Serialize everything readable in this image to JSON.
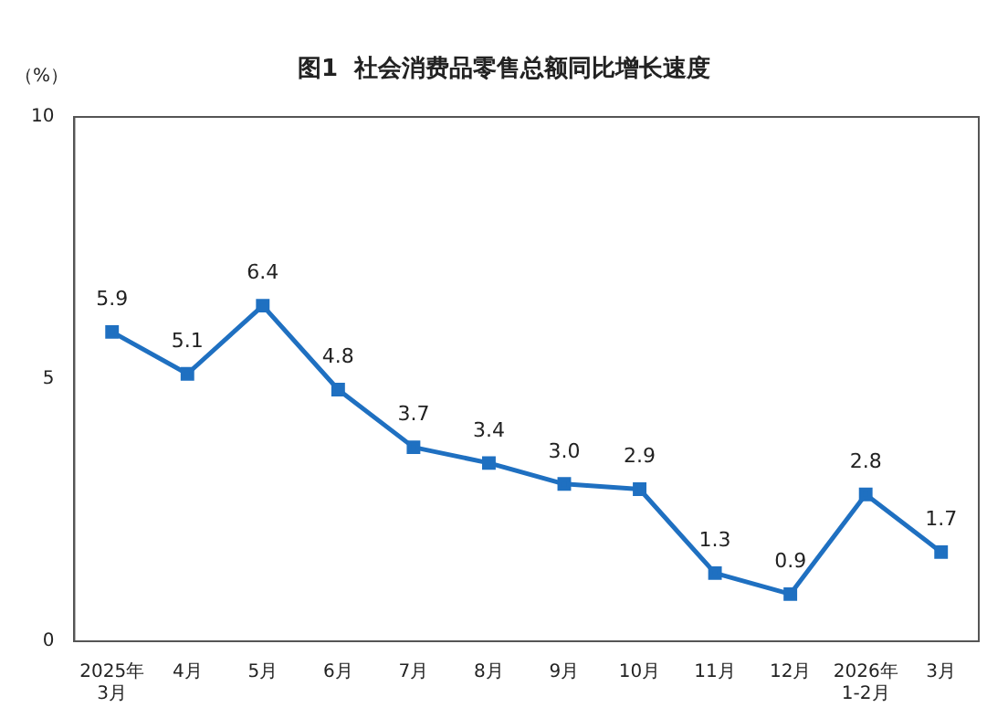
{
  "chart_data": {
    "type": "line",
    "title": "图1  社会消费品零售总额同比增长速度",
    "ylabel": "（%）",
    "categories": [
      "2025年\n3月",
      "4月",
      "5月",
      "6月",
      "7月",
      "8月",
      "9月",
      "10月",
      "11月",
      "12月",
      "2026年\n1-2月",
      "3月"
    ],
    "series": [
      {
        "color": "#1f70c1",
        "values": [
          5.9,
          5.1,
          6.4,
          4.8,
          3.7,
          3.4,
          3.0,
          2.9,
          1.3,
          0.9,
          2.8,
          1.7
        ],
        "value_labels": [
          "5.9",
          "5.1",
          "6.4",
          "4.8",
          "3.7",
          "3.4",
          "3.0",
          "2.9",
          "1.3",
          "0.9",
          "2.8",
          "1.7"
        ]
      }
    ],
    "ylim": [
      0,
      10
    ],
    "yticks": [
      0,
      5,
      10
    ],
    "grid": false,
    "legend": false,
    "marker": "square",
    "line_style": "solid"
  }
}
